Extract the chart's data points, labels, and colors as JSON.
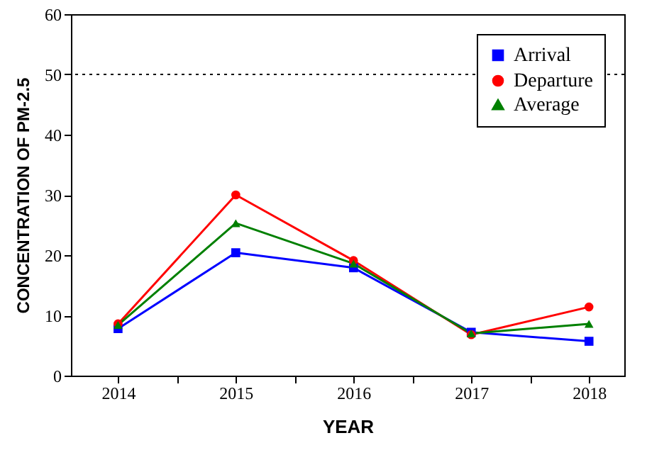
{
  "chart_data": {
    "type": "line",
    "xlabel": "YEAR",
    "ylabel": "CONCENTRATION OF PM-2.5",
    "x": [
      2014,
      2015,
      2016,
      2017,
      2018
    ],
    "series": [
      {
        "name": "Arrival",
        "color": "#0000ff",
        "marker": "square",
        "values": [
          7.8,
          20.4,
          17.9,
          7.2,
          5.7
        ]
      },
      {
        "name": "Departure",
        "color": "#ff0000",
        "marker": "circle",
        "values": [
          8.6,
          30.0,
          19.1,
          6.8,
          11.4
        ]
      },
      {
        "name": "Average",
        "color": "#008000",
        "marker": "triangle",
        "values": [
          8.4,
          25.3,
          18.6,
          7.0,
          8.6
        ]
      }
    ],
    "xlim": [
      2013.6,
      2018.3
    ],
    "xticks": [
      2014,
      {
        "value": 2014.5,
        "label": null
      },
      2015,
      {
        "value": 2015.5,
        "label": null
      },
      2016,
      {
        "value": 2016.5,
        "label": null
      },
      2017,
      {
        "value": 2017.5,
        "label": null
      },
      2018
    ],
    "ylim": [
      0,
      60
    ],
    "yticks": [
      0,
      10,
      20,
      30,
      40,
      50,
      60
    ],
    "ref_lines": [
      {
        "axis": "y",
        "value": 50,
        "color": "#000000",
        "line_style": "dotted"
      }
    ],
    "grid": false,
    "legend": "top right",
    "line_style": "solid"
  }
}
